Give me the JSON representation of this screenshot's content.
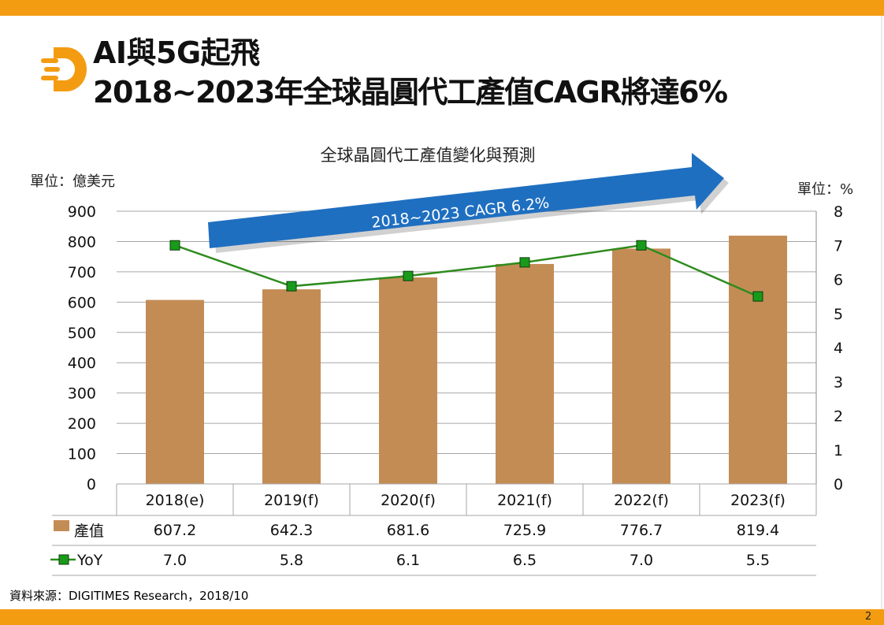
{
  "slide": {
    "title_line1": "AI與5G起飛",
    "title_line2": "2018~2023年全球晶圓代工產值CAGR將達6%",
    "page_number": "2",
    "source": "資料來源：DIGITIMES Research，2018/10",
    "accent_color": "#f39c12",
    "logo_icon": "d-logo-icon"
  },
  "chart_data": {
    "type": "bar",
    "title": "全球晶圓代工產值變化與預測",
    "categories": [
      "2018(e)",
      "2019(f)",
      "2020(f)",
      "2021(f)",
      "2022(f)",
      "2023(f)"
    ],
    "ylabel_left": "單位：億美元",
    "ylabel_right": "單位：%",
    "ylim_left": [
      0,
      900
    ],
    "yticks_left": [
      "0",
      "100",
      "200",
      "300",
      "400",
      "500",
      "600",
      "700",
      "800",
      "900"
    ],
    "ylim_right": [
      0,
      8
    ],
    "yticks_right": [
      "0",
      "1",
      "2",
      "3",
      "4",
      "5",
      "6",
      "7",
      "8"
    ],
    "grid": true,
    "series": [
      {
        "name": "產值",
        "type": "bar",
        "axis": "left",
        "color": "#c48c55",
        "values": [
          607.2,
          642.3,
          681.6,
          725.9,
          776.7,
          819.4
        ],
        "value_labels": [
          "607.2",
          "642.3",
          "681.6",
          "725.9",
          "776.7",
          "819.4"
        ]
      },
      {
        "name": "YoY",
        "type": "line",
        "axis": "right",
        "color": "#2e8b1e",
        "marker_color": "#1a9a1a",
        "values": [
          7.0,
          5.8,
          6.1,
          6.5,
          7.0,
          5.5
        ],
        "value_labels": [
          "7.0",
          "5.8",
          "6.1",
          "6.5",
          "7.0",
          "5.5"
        ]
      }
    ],
    "annotation": {
      "text": "2018~2023 CAGR 6.2%",
      "color": "#1f6fc0"
    }
  }
}
